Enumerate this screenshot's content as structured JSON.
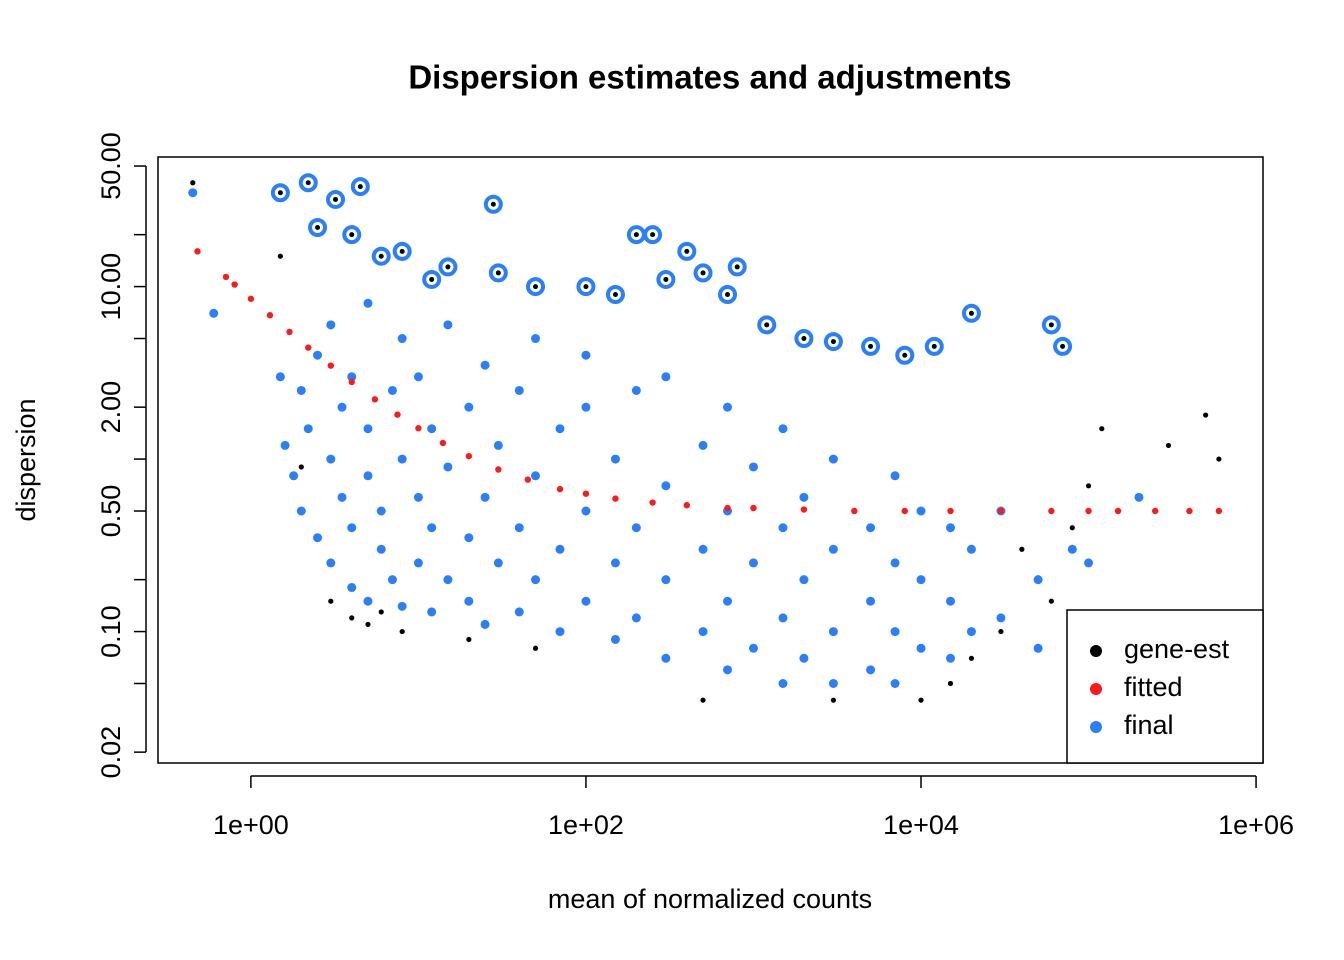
{
  "chart_data": {
    "type": "scatter",
    "title": "Dispersion estimates and adjustments",
    "xlabel": "mean of normalized counts",
    "ylabel": "dispersion",
    "xscale": "log",
    "yscale": "log",
    "xlim": [
      0.279,
      1100000
    ],
    "ylim": [
      0.0173,
      56.4
    ],
    "xticks": [
      {
        "value": 1,
        "label": "1e+00"
      },
      {
        "value": 100,
        "label": "1e+02"
      },
      {
        "value": 10000,
        "label": "1e+04"
      },
      {
        "value": 1000000,
        "label": "1e+06"
      }
    ],
    "yticks": [
      {
        "value": 0.02,
        "label": "0.02"
      },
      {
        "value": 0.1,
        "label": "0.10"
      },
      {
        "value": 0.5,
        "label": "0.50"
      },
      {
        "value": 2,
        "label": "2.00"
      },
      {
        "value": 10,
        "label": "10.00"
      },
      {
        "value": 50,
        "label": "50.00"
      }
    ],
    "yminorticks": [
      0.05,
      0.2,
      1,
      5,
      20
    ],
    "legend": "bottom-right",
    "series": [
      {
        "name": "gene-est",
        "color": "#000000",
        "x": [
          0.45,
          1.5,
          2,
          3,
          4,
          5,
          6,
          8,
          20,
          50,
          500,
          3000,
          10000,
          15000,
          20000,
          30000,
          40000,
          60000,
          80000,
          100000,
          120000,
          300000,
          500000,
          600000,
          400000,
          250000
        ],
        "values": [
          40,
          15,
          0.9,
          0.15,
          0.12,
          0.11,
          0.13,
          0.1,
          0.09,
          0.08,
          0.04,
          0.04,
          0.04,
          0.05,
          0.07,
          0.1,
          0.3,
          0.15,
          0.4,
          0.7,
          1.5,
          1.2,
          1.8,
          1.0,
          0.07,
          0.09
        ]
      },
      {
        "name": "final",
        "color": "#2a7fff",
        "x": [
          1.5,
          1.6,
          1.8,
          2,
          2,
          2.2,
          2.5,
          2.5,
          3,
          3,
          3,
          3.5,
          3.5,
          4,
          4,
          4,
          5,
          5,
          5,
          5,
          6,
          6,
          7,
          7,
          8,
          8,
          8,
          10,
          10,
          10,
          12,
          12,
          12,
          15,
          15,
          15,
          20,
          20,
          20,
          25,
          25,
          25,
          30,
          30,
          40,
          40,
          40,
          50,
          50,
          50,
          70,
          70,
          70,
          100,
          100,
          100,
          100,
          150,
          150,
          150,
          200,
          200,
          200,
          300,
          300,
          300,
          300,
          500,
          500,
          500,
          700,
          700,
          700,
          700,
          1000,
          1000,
          1000,
          1500,
          1500,
          1500,
          1500,
          2000,
          2000,
          2000,
          3000,
          3000,
          3000,
          3000,
          5000,
          5000,
          5000,
          7000,
          7000,
          7000,
          7000,
          10000,
          10000,
          10000,
          15000,
          15000,
          15000,
          20000,
          20000,
          30000,
          30000,
          50000,
          50000,
          80000,
          100000,
          200000,
          0.45,
          0.6
        ],
        "values": [
          3,
          1.2,
          0.8,
          0.5,
          2.5,
          1.5,
          0.35,
          4,
          0.25,
          1,
          6,
          0.6,
          2,
          0.18,
          0.4,
          3,
          0.15,
          0.8,
          1.5,
          8,
          0.3,
          0.5,
          0.2,
          2.5,
          0.14,
          1,
          5,
          0.25,
          0.6,
          3,
          0.13,
          0.4,
          1.5,
          0.2,
          0.9,
          6,
          0.15,
          0.35,
          2,
          0.11,
          0.6,
          3.5,
          0.25,
          1.2,
          0.13,
          0.4,
          2.5,
          0.2,
          0.8,
          5,
          0.1,
          0.3,
          1.5,
          0.15,
          0.5,
          2,
          4,
          0.09,
          0.25,
          1,
          0.12,
          0.4,
          2.5,
          0.07,
          0.2,
          0.7,
          3,
          0.1,
          0.3,
          1.2,
          0.06,
          0.15,
          0.5,
          2,
          0.08,
          0.25,
          0.9,
          0.05,
          0.12,
          0.4,
          1.5,
          0.07,
          0.2,
          0.6,
          0.05,
          0.1,
          0.3,
          1,
          0.06,
          0.15,
          0.4,
          0.05,
          0.1,
          0.25,
          0.8,
          0.08,
          0.2,
          0.5,
          0.07,
          0.15,
          0.4,
          0.1,
          0.3,
          0.12,
          0.5,
          0.2,
          0.08,
          0.3,
          0.25,
          0.6,
          35,
          7
        ]
      },
      {
        "name": "fitted",
        "color": "#ff1a1a",
        "x": [
          0.48,
          0.71,
          0.8,
          1,
          1.3,
          1.7,
          2.2,
          3,
          4,
          5.5,
          7.5,
          10,
          14,
          20,
          30,
          45,
          70,
          100,
          150,
          250,
          400,
          700,
          1000,
          2000,
          4000,
          8000,
          15000,
          30000,
          60000,
          100000,
          150000,
          250000,
          400000,
          600000
        ],
        "values": [
          16.0,
          11.38,
          10.28,
          8.5,
          6.82,
          5.46,
          4.43,
          3.48,
          2.8,
          2.22,
          1.81,
          1.51,
          1.24,
          1.04,
          0.87,
          0.76,
          0.67,
          0.63,
          0.59,
          0.56,
          0.54,
          0.52,
          0.52,
          0.51,
          0.5,
          0.5,
          0.5,
          0.5,
          0.5,
          0.5,
          0.5,
          0.5,
          0.5,
          0.5
        ]
      }
    ],
    "outliers": {
      "color": "#2a7fff",
      "x": [
        1.5,
        2.2,
        3.2,
        4.5,
        2.5,
        4,
        6,
        8,
        12,
        15,
        28,
        30,
        50,
        100,
        150,
        200,
        250,
        300,
        400,
        500,
        700,
        800,
        1200,
        2000,
        3000,
        5000,
        8000,
        12000,
        20000,
        60000,
        70000
      ],
      "values": [
        35,
        40,
        32,
        38,
        22,
        20,
        15,
        16,
        11,
        13,
        30,
        12,
        10,
        10,
        9,
        20,
        20,
        11,
        16,
        12,
        9,
        13,
        6,
        5,
        4.8,
        4.5,
        4,
        4.5,
        7,
        6,
        4.5
      ]
    }
  }
}
